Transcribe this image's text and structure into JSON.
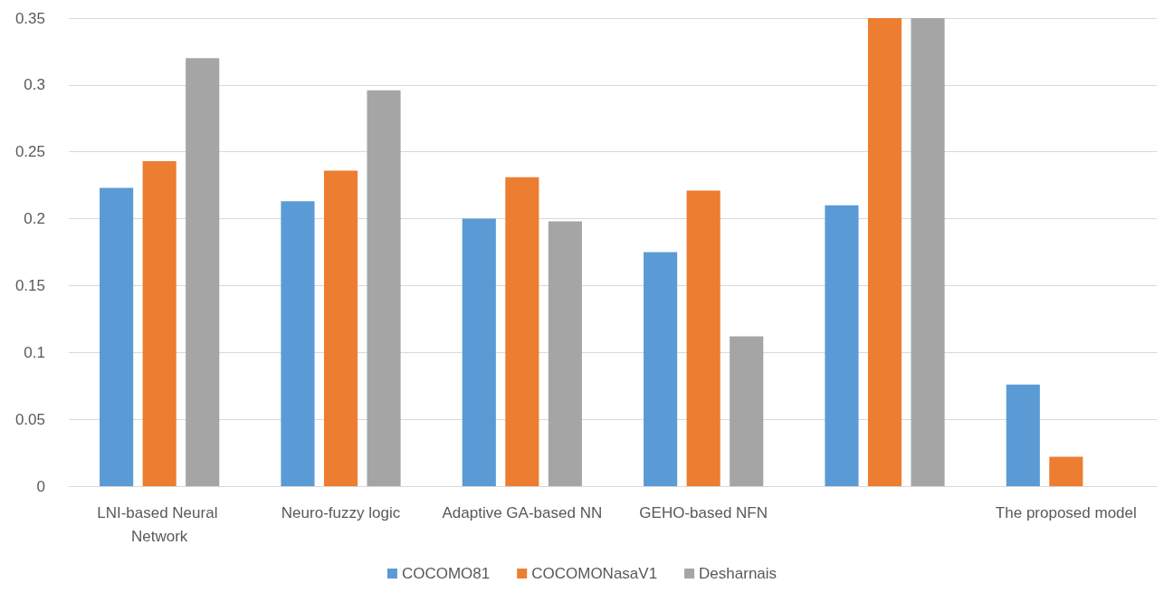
{
  "chart_data": {
    "type": "bar",
    "categories": [
      "LNI-based Neural Network",
      "Neuro-fuzzy logic",
      "Adaptive GA-based NN",
      "GEHO-based NFN",
      null,
      "The proposed model"
    ],
    "series": [
      {
        "name": "COCOMO81",
        "color": "#5b9bd5",
        "values": [
          0.223,
          0.213,
          0.2,
          0.175,
          0.21,
          0.076
        ]
      },
      {
        "name": "COCOMONasaV1",
        "color": "#ed7d31",
        "values": [
          0.243,
          0.236,
          0.231,
          0.221,
          0.35,
          0.022
        ]
      },
      {
        "name": "Desharnais",
        "color": "#a5a5a5",
        "values": [
          0.32,
          0.296,
          0.198,
          0.112,
          0.35,
          null
        ]
      }
    ],
    "ylim": [
      0,
      0.35
    ],
    "yticks": [
      0,
      0.05,
      0.1,
      0.15,
      0.2,
      0.25,
      0.3,
      0.35
    ],
    "grid": "y",
    "legend": "bottom"
  }
}
